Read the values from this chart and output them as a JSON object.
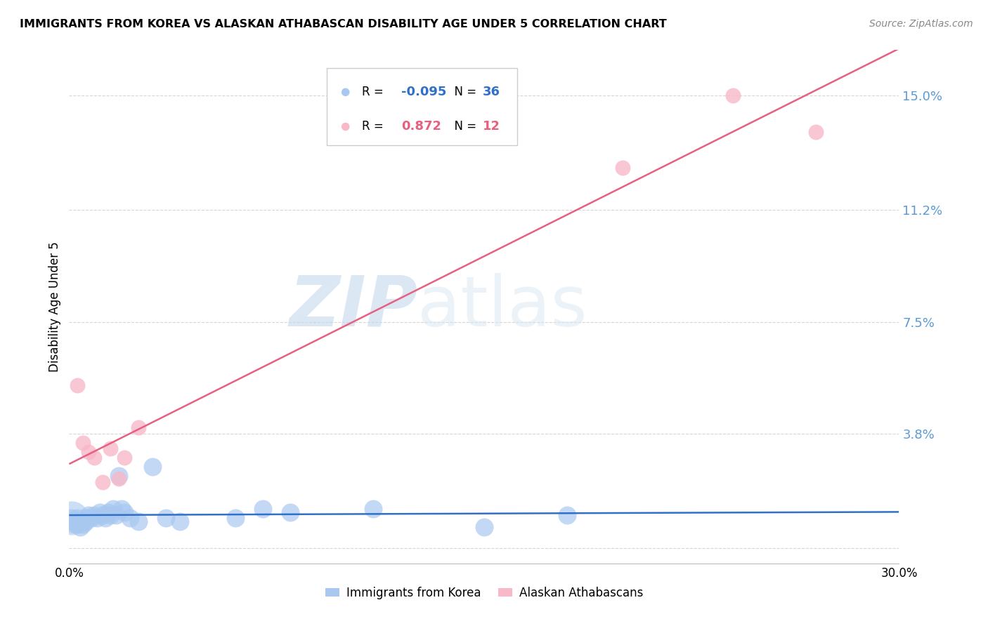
{
  "title": "IMMIGRANTS FROM KOREA VS ALASKAN ATHABASCAN DISABILITY AGE UNDER 5 CORRELATION CHART",
  "source": "Source: ZipAtlas.com",
  "ylabel": "Disability Age Under 5",
  "xlim": [
    0.0,
    0.3
  ],
  "ylim": [
    -0.005,
    0.165
  ],
  "yticks": [
    0.0,
    0.038,
    0.075,
    0.112,
    0.15
  ],
  "ytick_labels": [
    "",
    "3.8%",
    "7.5%",
    "11.2%",
    "15.0%"
  ],
  "xticks": [
    0.0,
    0.05,
    0.1,
    0.15,
    0.2,
    0.25,
    0.3
  ],
  "xtick_labels": [
    "0.0%",
    "",
    "",
    "",
    "",
    "",
    "30.0%"
  ],
  "blue_R": -0.095,
  "blue_N": 36,
  "pink_R": 0.872,
  "pink_N": 12,
  "blue_color": "#A8C8F0",
  "pink_color": "#F8B8C8",
  "blue_line_color": "#3070C8",
  "pink_line_color": "#E86080",
  "blue_scatter": [
    [
      0.001,
      0.01
    ],
    [
      0.002,
      0.009
    ],
    [
      0.002,
      0.008
    ],
    [
      0.003,
      0.01
    ],
    [
      0.003,
      0.008
    ],
    [
      0.004,
      0.009
    ],
    [
      0.004,
      0.007
    ],
    [
      0.005,
      0.009
    ],
    [
      0.005,
      0.008
    ],
    [
      0.006,
      0.01
    ],
    [
      0.006,
      0.009
    ],
    [
      0.007,
      0.011
    ],
    [
      0.008,
      0.01
    ],
    [
      0.009,
      0.011
    ],
    [
      0.01,
      0.01
    ],
    [
      0.011,
      0.012
    ],
    [
      0.012,
      0.011
    ],
    [
      0.013,
      0.01
    ],
    [
      0.014,
      0.012
    ],
    [
      0.015,
      0.011
    ],
    [
      0.016,
      0.013
    ],
    [
      0.017,
      0.011
    ],
    [
      0.018,
      0.024
    ],
    [
      0.019,
      0.013
    ],
    [
      0.02,
      0.012
    ],
    [
      0.022,
      0.01
    ],
    [
      0.025,
      0.009
    ],
    [
      0.03,
      0.027
    ],
    [
      0.035,
      0.01
    ],
    [
      0.04,
      0.009
    ],
    [
      0.06,
      0.01
    ],
    [
      0.07,
      0.013
    ],
    [
      0.08,
      0.012
    ],
    [
      0.11,
      0.013
    ],
    [
      0.15,
      0.007
    ],
    [
      0.18,
      0.011
    ]
  ],
  "pink_scatter": [
    [
      0.003,
      0.054
    ],
    [
      0.005,
      0.035
    ],
    [
      0.007,
      0.032
    ],
    [
      0.009,
      0.03
    ],
    [
      0.012,
      0.022
    ],
    [
      0.015,
      0.033
    ],
    [
      0.018,
      0.023
    ],
    [
      0.02,
      0.03
    ],
    [
      0.025,
      0.04
    ],
    [
      0.2,
      0.126
    ],
    [
      0.24,
      0.15
    ],
    [
      0.27,
      0.138
    ]
  ],
  "blue_sizes_default": 350,
  "pink_sizes_default": 250,
  "watermark_zip": "ZIP",
  "watermark_atlas": "atlas",
  "background_color": "#FFFFFF",
  "grid_color": "#CCCCCC",
  "legend_blue_label": "Immigrants from Korea",
  "legend_pink_label": "Alaskan Athabascans"
}
